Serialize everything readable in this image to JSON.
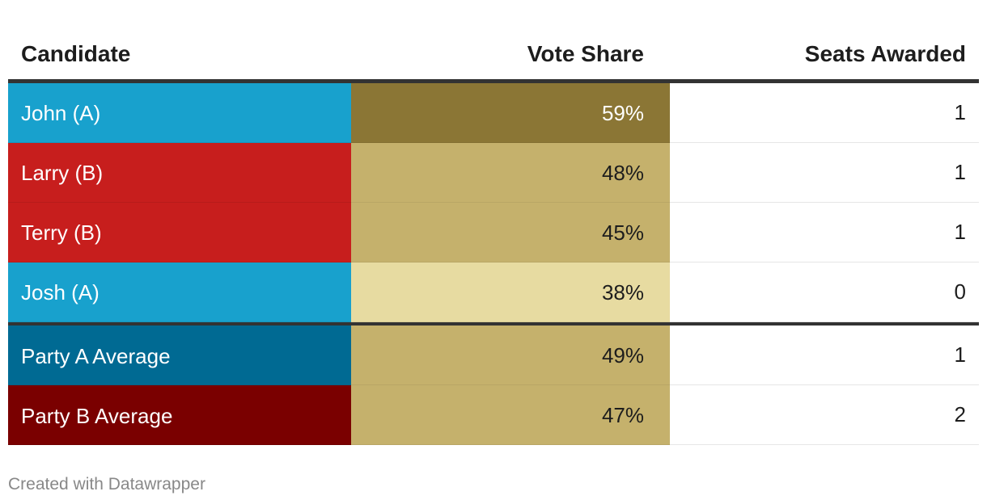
{
  "chart_data": {
    "type": "table",
    "columns": [
      "Candidate",
      "Vote Share",
      "Seats Awarded"
    ],
    "rows": [
      {
        "candidate": "John (A)",
        "vote_share": "59%",
        "vote_value": 59,
        "seats": "1",
        "party_color": "#18a1cd",
        "share_color": "#8b7635",
        "share_text_color": "#ffffff"
      },
      {
        "candidate": "Larry (B)",
        "vote_share": "48%",
        "vote_value": 48,
        "seats": "1",
        "party_color": "#c71e1d",
        "share_color": "#c5b16c",
        "share_text_color": "#1d1d1d"
      },
      {
        "candidate": "Terry (B)",
        "vote_share": "45%",
        "vote_value": 45,
        "seats": "1",
        "party_color": "#c71e1d",
        "share_color": "#c5b16c",
        "share_text_color": "#1d1d1d"
      },
      {
        "candidate": "Josh (A)",
        "vote_share": "38%",
        "vote_value": 38,
        "seats": "0",
        "party_color": "#18a1cd",
        "share_color": "#e7dba1",
        "share_text_color": "#1d1d1d"
      }
    ],
    "averages": [
      {
        "candidate": "Party A Average",
        "vote_share": "49%",
        "vote_value": 49,
        "seats": "1",
        "party_color": "#006a93",
        "share_color": "#c5b16c",
        "share_text_color": "#1d1d1d"
      },
      {
        "candidate": "Party B Average",
        "vote_share": "47%",
        "vote_value": 47,
        "seats": "2",
        "party_color": "#7a0000",
        "share_color": "#c5b16c",
        "share_text_color": "#1d1d1d"
      }
    ]
  },
  "footer": "Created with Datawrapper"
}
